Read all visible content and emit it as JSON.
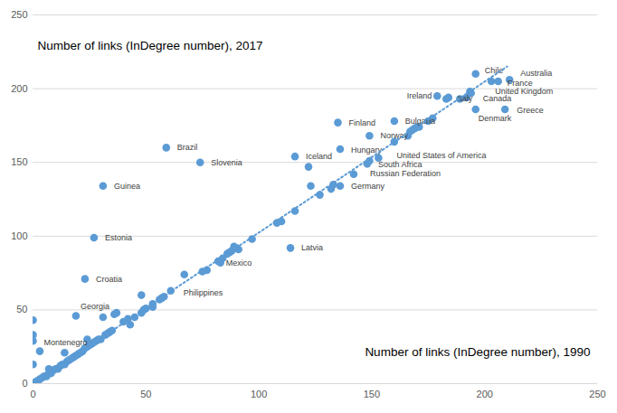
{
  "chart_data": {
    "type": "scatter",
    "x_label": "Number of links (InDegree number), 1990",
    "y_label": "Number of links (InDegree number), 2017",
    "xlim": [
      0,
      250
    ],
    "ylim": [
      0,
      250
    ],
    "xticks": [
      0,
      50,
      100,
      150,
      200,
      250
    ],
    "yticks": [
      0,
      50,
      100,
      150,
      200,
      250
    ],
    "grid": "y",
    "color": "#5b9bd5",
    "series": [
      {
        "type": "scatter",
        "marker": "circle",
        "color": "#5b9bd5",
        "labels": [
          "Chile",
          "Australia",
          "France",
          "United Kingdom",
          "Ireland",
          "Italy",
          "Canada",
          "Denmark",
          "Greece",
          "Finland",
          "Bulgaria",
          "Norway",
          "Hungary",
          "Iceland",
          "United States of America",
          "South Africa",
          "Russian Federation",
          "Germany",
          "Brazil",
          "Slovenia",
          "Guinea",
          "Estonia",
          "Croatia",
          "Georgia",
          "Montenegro",
          "Mexico",
          "Philippines",
          "Latvia",
          null,
          null,
          null,
          null,
          null,
          null,
          null,
          null,
          null,
          null,
          null,
          null,
          null,
          null,
          null,
          null,
          null,
          null,
          null,
          null,
          null,
          null,
          null,
          null,
          null,
          null,
          null,
          null,
          null,
          null,
          null,
          null,
          null,
          null,
          null,
          null,
          null,
          null,
          null,
          null,
          null,
          null,
          null,
          null,
          null,
          null,
          null,
          null,
          null,
          null,
          null,
          null,
          null,
          null,
          null,
          null,
          null,
          null,
          null,
          null,
          null,
          null,
          null,
          null,
          null,
          null,
          null,
          null,
          null,
          null,
          null,
          null,
          null,
          null,
          null,
          null,
          null,
          null,
          null,
          null,
          null,
          null,
          null
        ],
        "x": [
          196,
          211,
          206,
          203,
          179,
          184,
          192,
          196,
          209,
          135,
          160,
          149,
          136,
          116,
          153,
          148,
          142,
          136,
          59,
          74,
          31,
          27,
          23,
          19,
          0,
          83,
          61,
          114,
          0,
          1,
          2,
          3,
          4,
          5,
          6,
          7,
          8,
          9,
          10,
          11,
          12,
          13,
          14,
          15,
          16,
          17,
          18,
          19,
          20,
          21,
          22,
          23,
          24,
          25,
          26,
          27,
          28,
          29,
          30,
          14,
          7,
          24,
          32,
          33,
          34,
          35,
          36,
          37,
          31,
          40,
          42,
          43,
          45,
          48,
          49,
          50,
          48,
          53,
          53,
          56,
          57,
          58,
          67,
          75,
          77,
          82,
          84,
          86,
          87,
          88,
          89,
          90,
          91,
          97,
          108,
          110,
          116,
          122,
          123,
          127,
          132,
          133,
          149,
          160,
          166,
          167,
          168,
          169,
          170,
          171,
          175,
          177,
          183,
          189,
          194,
          193.5,
          0,
          0,
          0,
          3
        ],
        "y": [
          210,
          206,
          205,
          205,
          195,
          194,
          194,
          186,
          186,
          177,
          178,
          168,
          159,
          154,
          153,
          149,
          142,
          134,
          160,
          150,
          134,
          99,
          71,
          46,
          29,
          82,
          63,
          92,
          0,
          1,
          2,
          3,
          4,
          5,
          5,
          7,
          7,
          9,
          10,
          10,
          12,
          13,
          13,
          15,
          16,
          17,
          18,
          19,
          20,
          21,
          22,
          24,
          25,
          26,
          27,
          28,
          29,
          30,
          30,
          21,
          10,
          30,
          33,
          34,
          35,
          36,
          47,
          48,
          45,
          42,
          44,
          40,
          45,
          48,
          50,
          51,
          60,
          52,
          54,
          57,
          58,
          59,
          74,
          76,
          77,
          83,
          85,
          88,
          89,
          90,
          93,
          92,
          91,
          98,
          109,
          110,
          117,
          147,
          134,
          128,
          132,
          135,
          151,
          164,
          168,
          171,
          172,
          173,
          174,
          174,
          178,
          180,
          193,
          193,
          197,
          198,
          43,
          33,
          13,
          22
        ]
      },
      {
        "type": "line",
        "line_style": "dotted",
        "color": "#5b9bd5",
        "x": [
          0,
          210
        ],
        "y": [
          0,
          215
        ]
      }
    ]
  }
}
